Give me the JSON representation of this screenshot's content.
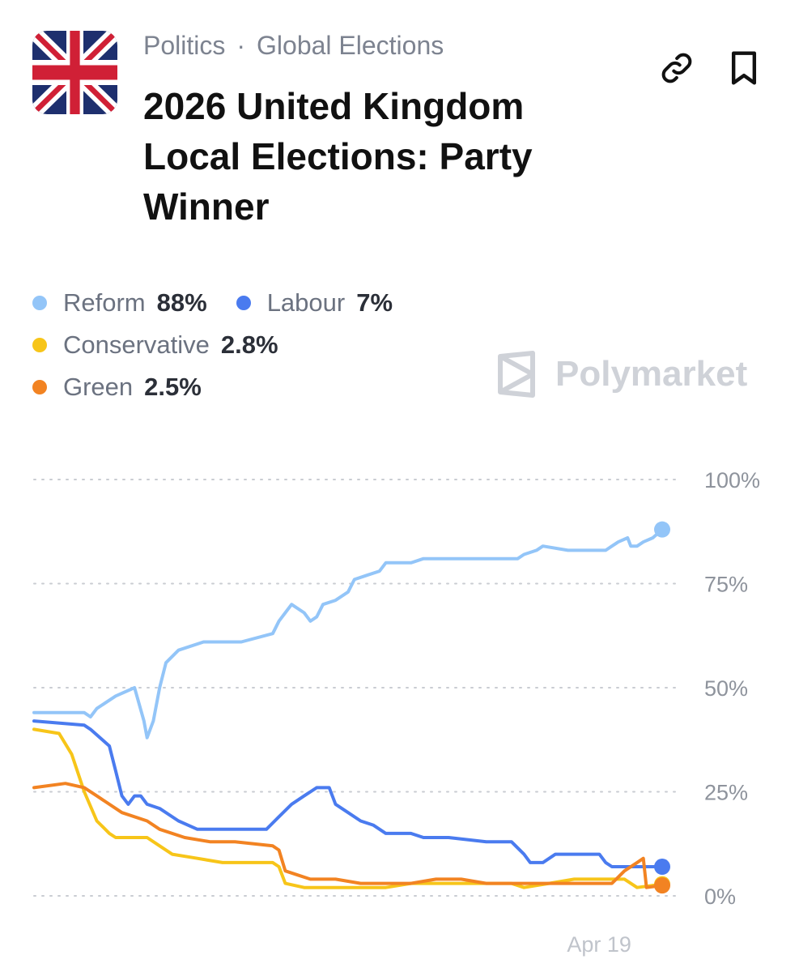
{
  "header": {
    "breadcrumb": [
      "Politics",
      "Global Elections"
    ],
    "breadcrumb_separator": "·",
    "title": "2026 United Kingdom Local Elections: Party Winner",
    "flag_icon": "uk-flag-icon",
    "link_icon": "link-icon",
    "bookmark_icon": "bookmark-icon"
  },
  "legend": [
    {
      "name": "Reform",
      "value": "88%",
      "color": "#93c5f8"
    },
    {
      "name": "Labour",
      "value": "7%",
      "color": "#4a7bef"
    },
    {
      "name": "Conservative",
      "value": "2.8%",
      "color": "#f7c519"
    },
    {
      "name": "Green",
      "value": "2.5%",
      "color": "#f28322"
    }
  ],
  "watermark": {
    "text": "Polymarket",
    "icon": "polymarket-logo-icon"
  },
  "chart_data": {
    "type": "line",
    "title": "",
    "xlabel": "",
    "ylabel": "",
    "ylim": [
      0,
      100
    ],
    "y_tick_labels": [
      "0%",
      "25%",
      "50%",
      "75%",
      "100%"
    ],
    "y_ticks": [
      0,
      25,
      50,
      75,
      100
    ],
    "grid": true,
    "x_tick_labels": [
      {
        "label": "Apr 19",
        "t": 0.9
      }
    ],
    "series": [
      {
        "name": "Reform",
        "color": "#93c5f8",
        "end_value": 88,
        "points": [
          [
            0,
            44
          ],
          [
            0.08,
            44
          ],
          [
            0.09,
            43
          ],
          [
            0.1,
            45
          ],
          [
            0.13,
            48
          ],
          [
            0.16,
            50
          ],
          [
            0.175,
            42
          ],
          [
            0.18,
            38
          ],
          [
            0.19,
            42
          ],
          [
            0.2,
            50
          ],
          [
            0.21,
            56
          ],
          [
            0.23,
            59
          ],
          [
            0.27,
            61
          ],
          [
            0.33,
            61
          ],
          [
            0.38,
            63
          ],
          [
            0.39,
            66
          ],
          [
            0.4,
            68
          ],
          [
            0.41,
            70
          ],
          [
            0.43,
            68
          ],
          [
            0.44,
            66
          ],
          [
            0.45,
            67
          ],
          [
            0.46,
            70
          ],
          [
            0.48,
            71
          ],
          [
            0.5,
            73
          ],
          [
            0.51,
            76
          ],
          [
            0.53,
            77
          ],
          [
            0.55,
            78
          ],
          [
            0.56,
            80
          ],
          [
            0.6,
            80
          ],
          [
            0.62,
            81
          ],
          [
            0.66,
            81
          ],
          [
            0.7,
            81
          ],
          [
            0.77,
            81
          ],
          [
            0.78,
            82
          ],
          [
            0.8,
            83
          ],
          [
            0.81,
            84
          ],
          [
            0.85,
            83
          ],
          [
            0.88,
            83
          ],
          [
            0.9,
            83
          ],
          [
            0.91,
            83
          ],
          [
            0.92,
            84
          ],
          [
            0.93,
            85
          ],
          [
            0.945,
            86
          ],
          [
            0.95,
            84
          ],
          [
            0.96,
            84
          ],
          [
            0.97,
            85
          ],
          [
            0.985,
            86
          ],
          [
            1.0,
            88
          ]
        ]
      },
      {
        "name": "Labour",
        "color": "#4a7bef",
        "end_value": 7,
        "points": [
          [
            0,
            42
          ],
          [
            0.08,
            41
          ],
          [
            0.09,
            40
          ],
          [
            0.12,
            36
          ],
          [
            0.13,
            30
          ],
          [
            0.14,
            24
          ],
          [
            0.15,
            22
          ],
          [
            0.16,
            24
          ],
          [
            0.17,
            24
          ],
          [
            0.18,
            22
          ],
          [
            0.2,
            21
          ],
          [
            0.23,
            18
          ],
          [
            0.26,
            16
          ],
          [
            0.28,
            16
          ],
          [
            0.36,
            16
          ],
          [
            0.37,
            16
          ],
          [
            0.39,
            19
          ],
          [
            0.41,
            22
          ],
          [
            0.43,
            24
          ],
          [
            0.45,
            26
          ],
          [
            0.47,
            26
          ],
          [
            0.48,
            22
          ],
          [
            0.5,
            20
          ],
          [
            0.52,
            18
          ],
          [
            0.54,
            17
          ],
          [
            0.56,
            15
          ],
          [
            0.6,
            15
          ],
          [
            0.62,
            14
          ],
          [
            0.66,
            14
          ],
          [
            0.72,
            13
          ],
          [
            0.74,
            13
          ],
          [
            0.76,
            13
          ],
          [
            0.78,
            10
          ],
          [
            0.79,
            8
          ],
          [
            0.81,
            8
          ],
          [
            0.83,
            10
          ],
          [
            0.87,
            10
          ],
          [
            0.9,
            10
          ],
          [
            0.91,
            8
          ],
          [
            0.92,
            7
          ],
          [
            0.96,
            7
          ],
          [
            1.0,
            7
          ]
        ]
      },
      {
        "name": "Conservative",
        "color": "#f7c519",
        "end_value": 2.8,
        "points": [
          [
            0,
            40
          ],
          [
            0.04,
            39
          ],
          [
            0.06,
            34
          ],
          [
            0.08,
            25
          ],
          [
            0.1,
            18
          ],
          [
            0.12,
            15
          ],
          [
            0.13,
            14
          ],
          [
            0.18,
            14
          ],
          [
            0.2,
            12
          ],
          [
            0.22,
            10
          ],
          [
            0.26,
            9
          ],
          [
            0.3,
            8
          ],
          [
            0.34,
            8
          ],
          [
            0.38,
            8
          ],
          [
            0.39,
            7
          ],
          [
            0.4,
            3
          ],
          [
            0.43,
            2
          ],
          [
            0.46,
            2
          ],
          [
            0.5,
            2
          ],
          [
            0.56,
            2
          ],
          [
            0.6,
            3
          ],
          [
            0.66,
            3
          ],
          [
            0.72,
            3
          ],
          [
            0.76,
            3
          ],
          [
            0.78,
            2
          ],
          [
            0.82,
            3
          ],
          [
            0.86,
            4
          ],
          [
            0.92,
            4
          ],
          [
            0.94,
            4
          ],
          [
            0.96,
            2
          ],
          [
            1.0,
            2.8
          ]
        ]
      },
      {
        "name": "Green",
        "color": "#f28322",
        "end_value": 2.5,
        "points": [
          [
            0,
            26
          ],
          [
            0.05,
            27
          ],
          [
            0.08,
            26
          ],
          [
            0.1,
            24
          ],
          [
            0.14,
            20
          ],
          [
            0.18,
            18
          ],
          [
            0.2,
            16
          ],
          [
            0.24,
            14
          ],
          [
            0.28,
            13
          ],
          [
            0.32,
            13
          ],
          [
            0.38,
            12
          ],
          [
            0.39,
            11
          ],
          [
            0.4,
            6
          ],
          [
            0.42,
            5
          ],
          [
            0.44,
            4
          ],
          [
            0.48,
            4
          ],
          [
            0.52,
            3
          ],
          [
            0.56,
            3
          ],
          [
            0.6,
            3
          ],
          [
            0.64,
            4
          ],
          [
            0.68,
            4
          ],
          [
            0.72,
            3
          ],
          [
            0.76,
            3
          ],
          [
            0.8,
            3
          ],
          [
            0.86,
            3
          ],
          [
            0.92,
            3
          ],
          [
            0.94,
            6
          ],
          [
            0.96,
            8
          ],
          [
            0.97,
            9
          ],
          [
            0.975,
            2
          ],
          [
            1.0,
            2.5
          ]
        ]
      }
    ]
  }
}
